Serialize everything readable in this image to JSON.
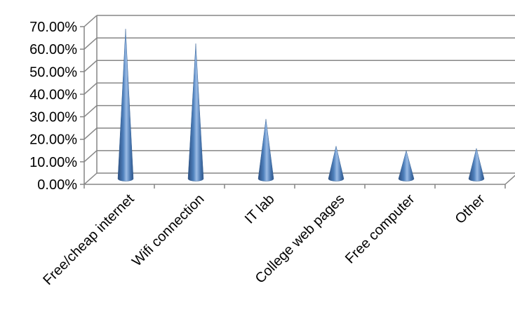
{
  "chart_data": {
    "type": "bar",
    "style": "3d-cone",
    "categories": [
      "Free/cheap internet",
      "Wifi connection",
      "IT lab",
      "College web pages",
      "Free computer",
      "Other"
    ],
    "values": [
      66.5,
      60.0,
      26.5,
      14.5,
      12.5,
      13.5
    ],
    "value_format": "percent",
    "ylim": [
      0,
      70
    ],
    "yticks": [
      0,
      10,
      20,
      30,
      40,
      50,
      60,
      70
    ],
    "ytick_labels": [
      "0.00%",
      "10.00%",
      "20.00%",
      "30.00%",
      "40.00%",
      "50.00%",
      "60.00%",
      "70.00%"
    ],
    "grid": true,
    "legend": "none",
    "bar_color": "#4f81bd"
  }
}
